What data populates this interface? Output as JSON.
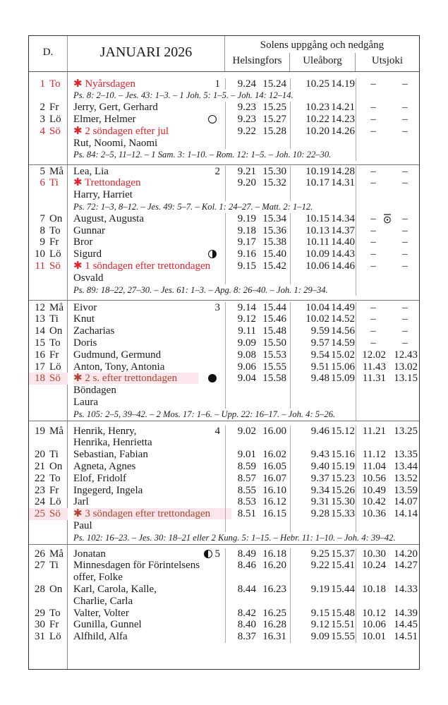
{
  "header": {
    "day_col": "D.",
    "month_title": "JANUARI 2026",
    "sun_title": "Solens uppgång och nedgång",
    "cities": [
      "Helsingfors",
      "Uleåborg",
      "Utsjoki"
    ]
  },
  "colors": {
    "holiday": "#e3202b",
    "highlight_text": "#a9462d",
    "highlight_bg": "#fce6ec"
  },
  "weeks": [
    {
      "lines": [
        {
          "d": "1",
          "dow": "To",
          "name": "✱ Nyårsdagen",
          "red": true,
          "week": "1",
          "hel": [
            "9.24",
            "15.24"
          ],
          "ule": [
            "10.25",
            "14.19"
          ],
          "uts": [
            "–",
            "–"
          ]
        },
        {
          "ps": "Ps. 8: 2–10. – Jes. 43: 1–3. – 1 Joh. 5: 1–5. – Joh. 14: 12–14."
        },
        {
          "d": "2",
          "dow": "Fr",
          "name": "Jerry, Gert, Gerhard",
          "hel": [
            "9.23",
            "15.25"
          ],
          "ule": [
            "10.23",
            "14.21"
          ],
          "uts": [
            "–",
            "–"
          ]
        },
        {
          "d": "3",
          "dow": "Lö",
          "name": "Elmer, Helmer",
          "moon": "full-moon",
          "hel": [
            "9.23",
            "15.27"
          ],
          "ule": [
            "10.22",
            "14.23"
          ],
          "uts": [
            "–",
            "–"
          ]
        },
        {
          "d": "4",
          "dow": "Sö",
          "name": "✱ 2 söndagen efter jul",
          "red": true,
          "hel": [
            "9.22",
            "15.28"
          ],
          "ule": [
            "10.20",
            "14.26"
          ],
          "uts": [
            "–",
            "–"
          ]
        },
        {
          "name": "Rut, Noomi, Naomi"
        },
        {
          "ps": "Ps. 84: 2–5, 11–12. – 1 Sam. 3: 1–10. – Rom. 12: 1–5. – Joh. 10: 22–30."
        }
      ]
    },
    {
      "lines": [
        {
          "d": "5",
          "dow": "Må",
          "name": "Lea, Lia",
          "week": "2",
          "hel": [
            "9.21",
            "15.30"
          ],
          "ule": [
            "10.19",
            "14.28"
          ],
          "uts": [
            "–",
            "–"
          ]
        },
        {
          "d": "6",
          "dow": "Ti",
          "name": "✱ Trettondagen",
          "red": true,
          "hel": [
            "9.20",
            "15.32"
          ],
          "ule": [
            "10.17",
            "14.31"
          ],
          "uts": [
            "–",
            "–"
          ]
        },
        {
          "name": "Harry, Harriet"
        },
        {
          "ps": "Ps. 72: 1–3, 8–12. – Jes. 49: 5–7. – Kol. 1: 24–27. – Matt. 2: 1–12."
        },
        {
          "d": "7",
          "dow": "On",
          "name": "August, Augusta",
          "hel": [
            "9.19",
            "15.34"
          ],
          "ule": [
            "10.15",
            "14.34"
          ],
          "uts": [
            "–",
            "–"
          ],
          "uts_icon": "sun-above-horizon"
        },
        {
          "d": "8",
          "dow": "To",
          "name": "Gunnar",
          "hel": [
            "9.18",
            "15.36"
          ],
          "ule": [
            "10.13",
            "14.37"
          ],
          "uts": [
            "–",
            "–"
          ]
        },
        {
          "d": "9",
          "dow": "Fr",
          "name": "Bror",
          "hel": [
            "9.17",
            "15.38"
          ],
          "ule": [
            "10.11",
            "14.40"
          ],
          "uts": [
            "–",
            "–"
          ]
        },
        {
          "d": "10",
          "dow": "Lö",
          "name": "Sigurd",
          "moon": "first-quarter",
          "hel": [
            "9.16",
            "15.40"
          ],
          "ule": [
            "10.09",
            "14.43"
          ],
          "uts": [
            "–",
            "–"
          ]
        },
        {
          "d": "11",
          "dow": "Sö",
          "name": "✱ 1 söndagen efter trettondagen",
          "red": true,
          "hel": [
            "9.15",
            "15.42"
          ],
          "ule": [
            "10.06",
            "14.46"
          ],
          "uts": [
            "–",
            "–"
          ]
        },
        {
          "name": "Osvald"
        },
        {
          "ps": "Ps. 89: 18–22, 27–30. – Jes. 61: 1–3. – Apg. 8: 26–40. – Joh. 1: 29–34."
        }
      ]
    },
    {
      "lines": [
        {
          "d": "12",
          "dow": "Må",
          "name": "Eivor",
          "week": "3",
          "hel": [
            "9.14",
            "15.44"
          ],
          "ule": [
            "10.04",
            "14.49"
          ],
          "uts": [
            "–",
            "–"
          ]
        },
        {
          "d": "13",
          "dow": "Ti",
          "name": "Knut",
          "hel": [
            "9.12",
            "15.46"
          ],
          "ule": [
            "10.02",
            "14.52"
          ],
          "uts": [
            "–",
            "–"
          ]
        },
        {
          "d": "14",
          "dow": "On",
          "name": "Zacharias",
          "hel": [
            "9.11",
            "15.48"
          ],
          "ule": [
            "9.59",
            "14.56"
          ],
          "uts": [
            "–",
            "–"
          ]
        },
        {
          "d": "15",
          "dow": "To",
          "name": "Doris",
          "hel": [
            "9.09",
            "15.50"
          ],
          "ule": [
            "9.57",
            "14.59"
          ],
          "uts": [
            "–",
            "–"
          ]
        },
        {
          "d": "16",
          "dow": "Fr",
          "name": "Gudmund, Germund",
          "hel": [
            "9.08",
            "15.53"
          ],
          "ule": [
            "9.54",
            "15.02"
          ],
          "uts": [
            "12.02",
            "12.43"
          ]
        },
        {
          "d": "17",
          "dow": "Lö",
          "name": "Anton, Tony, Antonia",
          "hel": [
            "9.06",
            "15.55"
          ],
          "ule": [
            "9.51",
            "15.06"
          ],
          "uts": [
            "11.43",
            "13.02"
          ]
        },
        {
          "d": "18",
          "dow": "Sö",
          "name": "✱ 2 s. efter trettondagen",
          "highlight": true,
          "moon": "new-moon",
          "hel": [
            "9.04",
            "15.58"
          ],
          "ule": [
            "9.48",
            "15.09"
          ],
          "uts": [
            "11.31",
            "13.15"
          ]
        },
        {
          "name": "Böndagen"
        },
        {
          "name": "Laura"
        },
        {
          "ps": "Ps. 105: 2–5, 39–42. – 2 Mos. 17: 1–6. – Upp. 22: 16–17. – Joh. 4: 5–26."
        }
      ]
    },
    {
      "lines": [
        {
          "d": "19",
          "dow": "Må",
          "name": "Henrik, Henry,",
          "week": "4",
          "hel": [
            "9.02",
            "16.00"
          ],
          "ule": [
            "9.46",
            "15.12"
          ],
          "uts": [
            "11.21",
            "13.25"
          ]
        },
        {
          "name": "Henrika, Henrietta"
        },
        {
          "d": "20",
          "dow": "Ti",
          "name": "Sebastian, Fabian",
          "hel": [
            "9.01",
            "16.02"
          ],
          "ule": [
            "9.43",
            "15.16"
          ],
          "uts": [
            "11.12",
            "13.35"
          ]
        },
        {
          "d": "21",
          "dow": "On",
          "name": "Agneta, Agnes",
          "hel": [
            "8.59",
            "16.05"
          ],
          "ule": [
            "9.40",
            "15.19"
          ],
          "uts": [
            "11.04",
            "13.44"
          ]
        },
        {
          "d": "22",
          "dow": "To",
          "name": "Elof, Fridolf",
          "hel": [
            "8.57",
            "16.07"
          ],
          "ule": [
            "9.37",
            "15.23"
          ],
          "uts": [
            "10.56",
            "13.52"
          ]
        },
        {
          "d": "23",
          "dow": "Fr",
          "name": "Ingegerd, Ingela",
          "hel": [
            "8.55",
            "16.10"
          ],
          "ule": [
            "9.34",
            "15.26"
          ],
          "uts": [
            "10.49",
            "13.59"
          ]
        },
        {
          "d": "24",
          "dow": "Lö",
          "name": "Jarl",
          "hel": [
            "8.53",
            "16.12"
          ],
          "ule": [
            "9.31",
            "15.30"
          ],
          "uts": [
            "10.42",
            "14.07"
          ]
        },
        {
          "d": "25",
          "dow": "Sö",
          "name": "✱ 3 söndagen efter trettondagen",
          "highlight": true,
          "hel": [
            "8.51",
            "16.15"
          ],
          "ule": [
            "9.28",
            "15.33"
          ],
          "uts": [
            "10.36",
            "14.14"
          ]
        },
        {
          "name": "Paul"
        },
        {
          "ps": "Ps. 102: 16–23. – Jes. 30: 18–21 eller 2 Kung. 5: 1–15. – Hebr. 11: 1–10. – Joh. 4: 39–42."
        }
      ]
    },
    {
      "lines": [
        {
          "d": "26",
          "dow": "Må",
          "name": "Jonatan",
          "moon": "last-quarter",
          "week": "5",
          "hel": [
            "8.49",
            "16.18"
          ],
          "ule": [
            "9.25",
            "15.37"
          ],
          "uts": [
            "10.30",
            "14.20"
          ]
        },
        {
          "d": "27",
          "dow": "Ti",
          "name": "Minnesdagen för Förintelsens",
          "hel": [
            "8.46",
            "16.20"
          ],
          "ule": [
            "9.22",
            "15.41"
          ],
          "uts": [
            "10.24",
            "14.27"
          ]
        },
        {
          "name": "offer, Folke"
        },
        {
          "d": "28",
          "dow": "On",
          "name": "Karl, Carola, Kalle,",
          "hel": [
            "8.44",
            "16.23"
          ],
          "ule": [
            "9.19",
            "15.44"
          ],
          "uts": [
            "10.18",
            "14.33"
          ]
        },
        {
          "name": "Charlie, Carla"
        },
        {
          "d": "29",
          "dow": "To",
          "name": "Valter, Volter",
          "hel": [
            "8.42",
            "16.25"
          ],
          "ule": [
            "9.15",
            "15.48"
          ],
          "uts": [
            "10.12",
            "14.39"
          ]
        },
        {
          "d": "30",
          "dow": "Fr",
          "name": "Gunilla, Gunnel",
          "hel": [
            "8.40",
            "16.28"
          ],
          "ule": [
            "9.12",
            "15.51"
          ],
          "uts": [
            "10.06",
            "14.45"
          ]
        },
        {
          "d": "31",
          "dow": "Lö",
          "name": "Alfhild, Alfa",
          "hel": [
            "8.37",
            "16.31"
          ],
          "ule": [
            "9.09",
            "15.55"
          ],
          "uts": [
            "10.01",
            "14.51"
          ]
        }
      ]
    }
  ]
}
